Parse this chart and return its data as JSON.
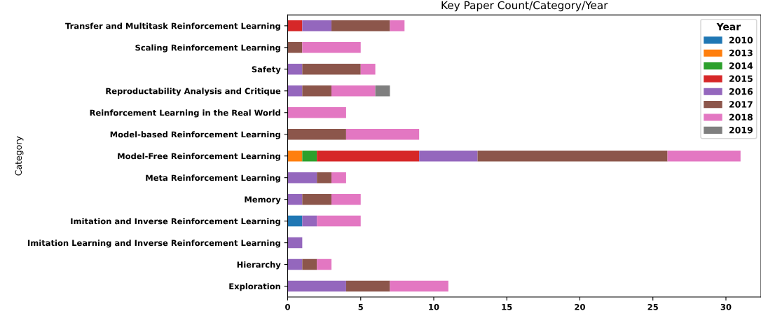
{
  "chart_data": {
    "type": "bar",
    "orientation": "horizontal",
    "stacked": true,
    "title": "Key Paper Count/Category/Year",
    "ylabel": "Category",
    "legend_title": "Year",
    "legend": "top right",
    "grid": false,
    "categories": [
      "Transfer and Multitask Reinforcement Learning",
      "Scaling Reinforcement Learning",
      "Safety",
      "Reproductability Analysis and Critique",
      "Reinforcement Learning in the Real World",
      "Model-based Reinforcement Learning",
      "Model-Free Reinforcement Learning",
      "Meta Reinforcement Learning",
      "Memory",
      "Imitation and Inverse Reinforcement Learning",
      "Imitation Learning and Inverse Reinforcement Learning",
      "Hierarchy",
      "Exploration"
    ],
    "xlim": [
      0,
      32.4
    ],
    "xticks": [
      0,
      5,
      10,
      15,
      20,
      25,
      30
    ],
    "series": [
      {
        "name": "2010",
        "color": "#1f77b4",
        "values": [
          null,
          null,
          null,
          null,
          null,
          null,
          null,
          null,
          null,
          1,
          null,
          null,
          null
        ]
      },
      {
        "name": "2013",
        "color": "#ff7f0e",
        "values": [
          null,
          null,
          null,
          null,
          null,
          null,
          1,
          null,
          null,
          null,
          null,
          null,
          null
        ]
      },
      {
        "name": "2014",
        "color": "#2ca02c",
        "values": [
          null,
          null,
          null,
          null,
          null,
          null,
          1,
          null,
          null,
          null,
          null,
          null,
          null
        ]
      },
      {
        "name": "2015",
        "color": "#d62728",
        "values": [
          1,
          null,
          null,
          null,
          null,
          null,
          7,
          null,
          null,
          null,
          null,
          null,
          null
        ]
      },
      {
        "name": "2016",
        "color": "#9467bd",
        "values": [
          2,
          null,
          1,
          1,
          null,
          null,
          4,
          2,
          1,
          1,
          1,
          1,
          4
        ]
      },
      {
        "name": "2017",
        "color": "#8c564b",
        "values": [
          4,
          1,
          4,
          2,
          null,
          4,
          13,
          1,
          2,
          null,
          null,
          1,
          3
        ]
      },
      {
        "name": "2018",
        "color": "#e377c2",
        "values": [
          1,
          4,
          1,
          3,
          4,
          5,
          5,
          1,
          2,
          3,
          null,
          1,
          4
        ]
      },
      {
        "name": "2019",
        "color": "#7f7f7f",
        "values": [
          null,
          null,
          null,
          1,
          null,
          null,
          null,
          null,
          null,
          null,
          null,
          null,
          null
        ]
      }
    ]
  }
}
